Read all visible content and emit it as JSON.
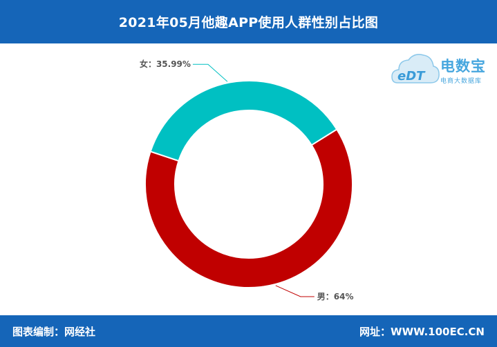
{
  "header": {
    "title": "2021年05月他趣APP使用人群性别占比图"
  },
  "footer": {
    "left": "图表编制：网经社",
    "right": "网址：WWW.100EC.CN"
  },
  "logo": {
    "mark": "eDT",
    "brand": "电数宝",
    "tagline": "电商大数据库",
    "icon": "cloud-logo-icon"
  },
  "chart_data": {
    "type": "pie",
    "donut": true,
    "title": "2021年05月他趣APP使用人群性别占比图",
    "slices": [
      {
        "label": "女",
        "value": 35.99,
        "display": "女：35.99%",
        "color": "#00c0c2"
      },
      {
        "label": "男",
        "value": 64,
        "display": "男：64%",
        "color": "#c00000"
      }
    ]
  }
}
